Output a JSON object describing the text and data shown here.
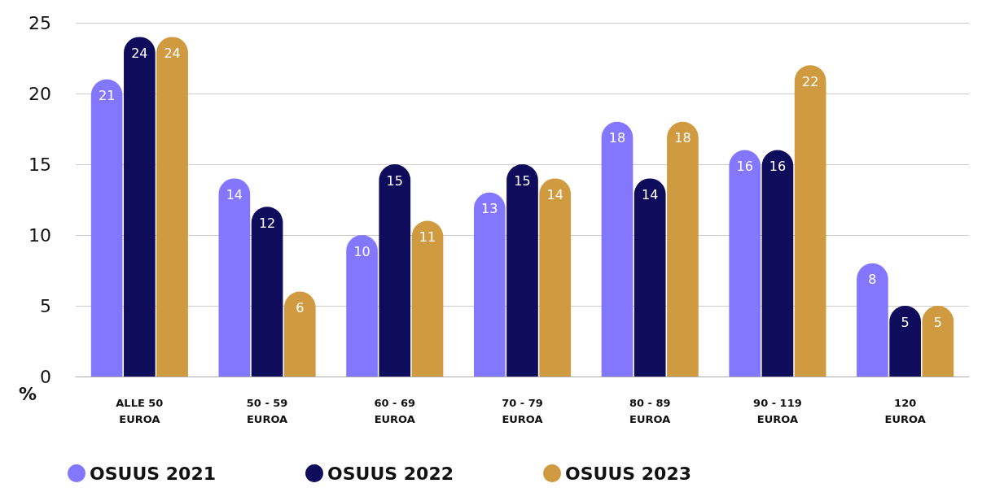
{
  "chart_data": {
    "type": "bar",
    "ylabel": "%",
    "categories": [
      "ALLE 50 EUROA",
      "50 - 59 EUROA",
      "60 - 69 EUROA",
      "70 - 79 EUROA",
      "80 - 89 EUROA",
      "90 - 119 EUROA",
      "120 EUROA"
    ],
    "series": [
      {
        "name": "OSUUS 2021",
        "color": "#8477ff",
        "values": [
          21,
          14,
          10,
          13,
          18,
          16,
          8
        ]
      },
      {
        "name": "OSUUS 2022",
        "color": "#0f0c5c",
        "values": [
          24,
          12,
          15,
          15,
          14,
          16,
          5
        ]
      },
      {
        "name": "OSUUS 2023",
        "color": "#d09a40",
        "values": [
          24,
          6,
          11,
          14,
          18,
          22,
          5
        ]
      }
    ],
    "ylim": [
      0,
      25
    ],
    "yticks": [
      0,
      5,
      10,
      15,
      20,
      25
    ],
    "grid": "y",
    "legend": "bottom left",
    "data_labels": true
  }
}
